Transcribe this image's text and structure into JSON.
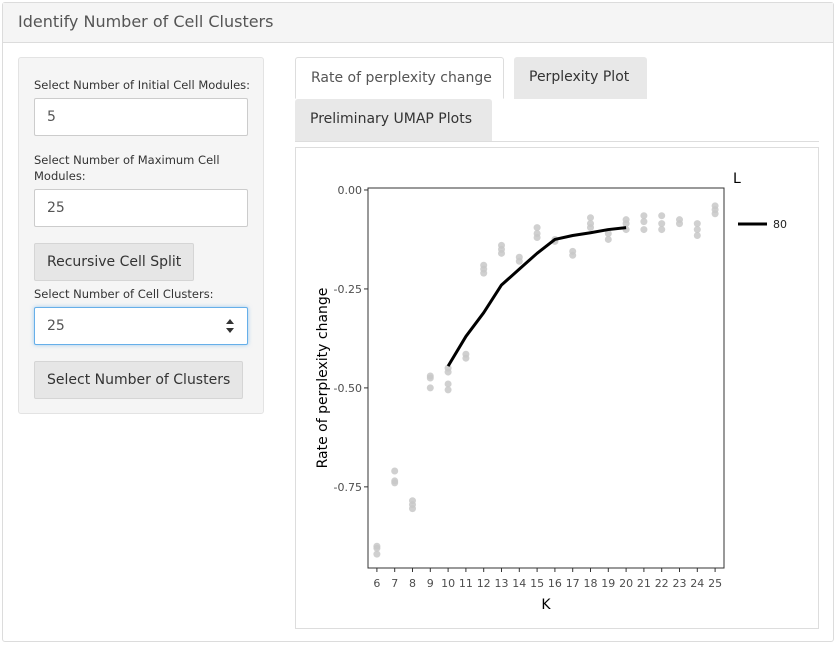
{
  "panel": {
    "title": "Identify Number of Cell Clusters"
  },
  "sidebar": {
    "initial_label": "Select Number of Initial Cell Modules:",
    "initial_value": "5",
    "max_label": "Select Number of Maximum Cell Modules:",
    "max_value": "25",
    "split_button": "Recursive Cell Split",
    "clusters_label": "Select Number of Cell Clusters:",
    "clusters_value": "25",
    "select_button": "Select Number of Clusters"
  },
  "tabs": [
    {
      "label": "Rate of perplexity change",
      "active": true
    },
    {
      "label": "Perplexity Plot",
      "active": false
    },
    {
      "label": "Preliminary UMAP Plots",
      "active": false
    }
  ],
  "colors": {
    "point": "#c8c8c8",
    "line": "#000000",
    "focus": "#66afe9"
  },
  "chart_data": {
    "type": "line",
    "xlabel": "K",
    "ylabel": "Rate of perplexity change",
    "xlim": [
      5.5,
      25.5
    ],
    "ylim": [
      -0.955,
      0.005
    ],
    "x_ticks": [
      6,
      7,
      8,
      9,
      10,
      11,
      12,
      13,
      14,
      15,
      16,
      17,
      18,
      19,
      20,
      21,
      22,
      23,
      24,
      25
    ],
    "y_ticks": [
      0.0,
      -0.25,
      -0.5,
      -0.75
    ],
    "y_tick_labels": [
      "0.00",
      "-0.25",
      "-0.50",
      "-0.75"
    ],
    "grid": false,
    "legend": {
      "title": "L",
      "position": "right",
      "entries": [
        "80"
      ]
    },
    "points": [
      [
        6,
        -0.9
      ],
      [
        6,
        -0.92
      ],
      [
        6,
        -0.905
      ],
      [
        7,
        -0.71
      ],
      [
        7,
        -0.735
      ],
      [
        7,
        -0.74
      ],
      [
        8,
        -0.785
      ],
      [
        8,
        -0.795
      ],
      [
        8,
        -0.805
      ],
      [
        9,
        -0.47
      ],
      [
        9,
        -0.475
      ],
      [
        9,
        -0.5
      ],
      [
        10,
        -0.46
      ],
      [
        10,
        -0.49
      ],
      [
        10,
        -0.505
      ],
      [
        10,
        -0.45
      ],
      [
        11,
        -0.415
      ],
      [
        11,
        -0.425
      ],
      [
        12,
        -0.19
      ],
      [
        12,
        -0.21
      ],
      [
        12,
        -0.2
      ],
      [
        13,
        -0.14
      ],
      [
        13,
        -0.16
      ],
      [
        13,
        -0.15
      ],
      [
        14,
        -0.17
      ],
      [
        14,
        -0.18
      ],
      [
        15,
        -0.095
      ],
      [
        15,
        -0.11
      ],
      [
        15,
        -0.12
      ],
      [
        16,
        -0.13
      ],
      [
        16,
        -0.125
      ],
      [
        17,
        -0.155
      ],
      [
        17,
        -0.165
      ],
      [
        18,
        -0.07
      ],
      [
        18,
        -0.085
      ],
      [
        18,
        -0.095
      ],
      [
        19,
        -0.11
      ],
      [
        19,
        -0.125
      ],
      [
        20,
        -0.075
      ],
      [
        20,
        -0.085
      ],
      [
        20,
        -0.1
      ],
      [
        21,
        -0.065
      ],
      [
        21,
        -0.08
      ],
      [
        21,
        -0.1
      ],
      [
        22,
        -0.065
      ],
      [
        22,
        -0.085
      ],
      [
        22,
        -0.1
      ],
      [
        23,
        -0.075
      ],
      [
        23,
        -0.085
      ],
      [
        24,
        -0.085
      ],
      [
        24,
        -0.1
      ],
      [
        24,
        -0.115
      ],
      [
        25,
        -0.04
      ],
      [
        25,
        -0.05
      ],
      [
        25,
        -0.06
      ]
    ],
    "series": [
      {
        "name": "80",
        "x": [
          10,
          11,
          12,
          13,
          14,
          15,
          16,
          17,
          18,
          19,
          20
        ],
        "values": [
          -0.445,
          -0.37,
          -0.31,
          -0.24,
          -0.2,
          -0.16,
          -0.125,
          -0.115,
          -0.108,
          -0.1,
          -0.095
        ]
      }
    ]
  }
}
